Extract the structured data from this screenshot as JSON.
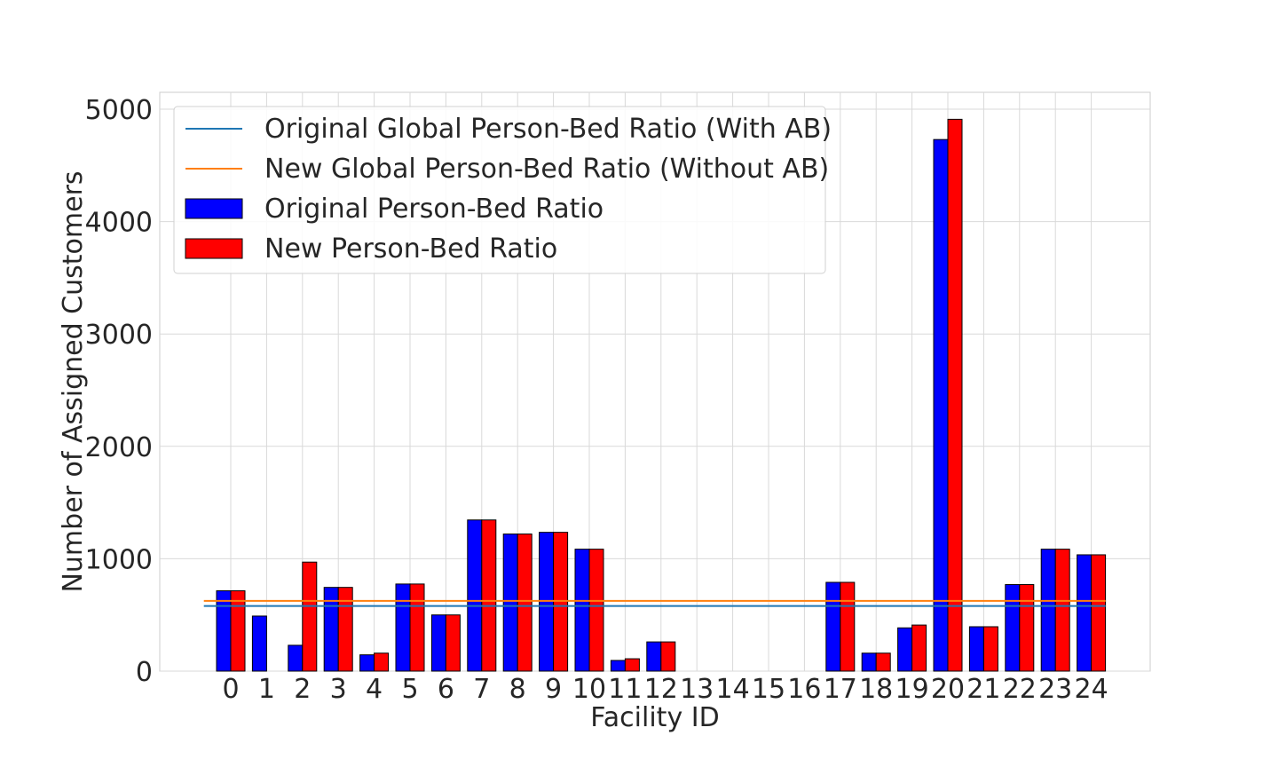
{
  "chart_data": {
    "type": "bar",
    "xlabel": "Facility ID",
    "ylabel": "Number of Assigned Customers",
    "ylim": [
      0,
      5150
    ],
    "yticks": [
      0,
      1000,
      2000,
      3000,
      4000,
      5000
    ],
    "grid": true,
    "legend_position": "top-left",
    "categories": [
      "0",
      "1",
      "2",
      "3",
      "4",
      "5",
      "6",
      "7",
      "8",
      "9",
      "10",
      "11",
      "12",
      "13",
      "14",
      "15",
      "16",
      "17",
      "18",
      "19",
      "20",
      "21",
      "22",
      "23",
      "24"
    ],
    "series": [
      {
        "name": "Original Person-Bed Ratio",
        "color": "#0000ff",
        "values": [
          715,
          490,
          230,
          745,
          145,
          775,
          500,
          1345,
          1220,
          1235,
          1085,
          95,
          260,
          0,
          0,
          0,
          0,
          790,
          160,
          385,
          4730,
          395,
          770,
          1085,
          1035
        ]
      },
      {
        "name": "New Person-Bed Ratio",
        "color": "#ff0000",
        "values": [
          715,
          0,
          970,
          745,
          160,
          775,
          500,
          1345,
          1220,
          1235,
          1085,
          110,
          260,
          0,
          0,
          0,
          0,
          790,
          160,
          410,
          4910,
          395,
          770,
          1085,
          1035
        ]
      }
    ],
    "reference_lines": [
      {
        "name": "Original Global Person-Bed Ratio (With AB)",
        "color": "#1f77b4",
        "value": 580
      },
      {
        "name": "New Global Person-Bed Ratio (Without AB)",
        "color": "#ff7f0e",
        "value": 625
      }
    ]
  }
}
